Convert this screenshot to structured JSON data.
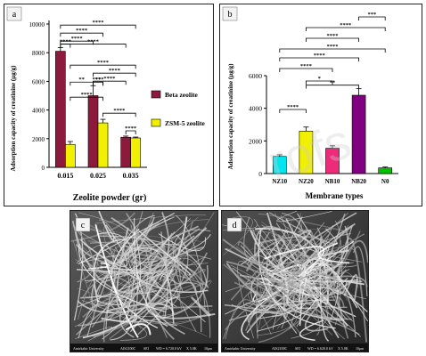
{
  "chart_data": [
    {
      "type": "bar",
      "panel_label": "a",
      "categories": [
        "0.015",
        "0.025",
        "0.035"
      ],
      "series": [
        {
          "name": "Beta zeolite",
          "values": [
            8100,
            5000,
            2100
          ],
          "errors": [
            250,
            700,
            80
          ],
          "color": "#8c1a3c"
        },
        {
          "name": "ZSM-5 zeolite",
          "values": [
            1600,
            3100,
            2050
          ],
          "errors": [
            200,
            250,
            60
          ],
          "color": "#f0f000"
        }
      ],
      "xlabel": "Zeolite powder (gr)",
      "ylabel": "Adsorption capacity of creatinine (μg/g)",
      "ylim": [
        0,
        10000
      ],
      "yticks": [
        0,
        2000,
        4000,
        6000,
        8000,
        10000
      ],
      "legend_position": "right",
      "significance": [
        "****",
        "****",
        "****",
        "****",
        "****",
        "****",
        "****",
        "****",
        "****",
        "****",
        "**",
        "****",
        "**",
        "****"
      ]
    },
    {
      "type": "bar",
      "panel_label": "b",
      "categories": [
        "NZ10",
        "NZ20",
        "NB10",
        "NB20",
        "N0"
      ],
      "values": [
        1050,
        2600,
        1550,
        4800,
        350
      ],
      "errors": [
        100,
        250,
        150,
        400,
        50
      ],
      "colors": [
        "#00e5ee",
        "#f0f000",
        "#ee2a7b",
        "#800080",
        "#00c000"
      ],
      "xlabel": "Membrane types",
      "ylabel": "Adsorption capacity of creatinine (μg/g)",
      "ylim": [
        0,
        6000
      ],
      "yticks": [
        0,
        2000,
        4000,
        6000
      ],
      "significance": [
        "***",
        "****",
        "****",
        "****",
        "****",
        "****",
        "*",
        "**",
        "****"
      ]
    }
  ],
  "images": [
    {
      "panel_label": "c",
      "footer": [
        "Amirkabir University",
        "AIS2100C",
        "SEI",
        "WD = 6.7",
        "20.0 kV",
        "X 5.0K",
        "10μm"
      ]
    },
    {
      "panel_label": "d",
      "footer": [
        "Amirkabir University",
        "AIS2100C",
        "SEI",
        "WD = 6.6",
        "20.0 kV",
        "X 5.0K",
        "10μm"
      ]
    }
  ],
  "watermark": "rofs"
}
